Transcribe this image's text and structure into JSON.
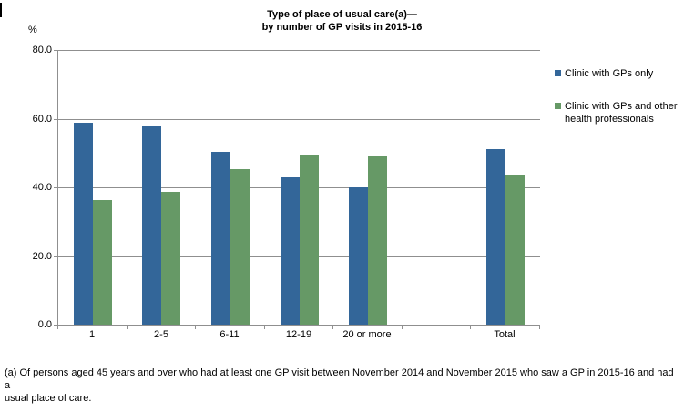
{
  "chart_data": {
    "type": "bar",
    "title_line1": "Type of place of usual care(a)—",
    "title_line2": "by number of GP visits in 2015-16",
    "ylabel": "%",
    "ylim": [
      0,
      80
    ],
    "ytick_values": [
      80,
      60,
      40,
      20,
      0
    ],
    "ytick_labels": [
      "80.0",
      "60.0",
      "40.0",
      "20.0",
      "0.0"
    ],
    "grid": true,
    "legend_position": "right",
    "categories": [
      "1",
      "2-5",
      "6-11",
      "12-19",
      "20 or more",
      "Total"
    ],
    "category_slots": [
      0,
      1,
      2,
      3,
      4,
      6
    ],
    "slot_count": 7,
    "series": [
      {
        "name": "Clinic with GPs only",
        "label_lines": [
          "Clinic with GPs only"
        ],
        "color": "#336699",
        "values": [
          58.7,
          57.7,
          50.3,
          42.9,
          40.0,
          51.2
        ]
      },
      {
        "name": "Clinic with GPs and other health professionals",
        "label_lines": [
          "Clinic with GPs and other",
          "health professionals"
        ],
        "color": "#669966",
        "values": [
          36.3,
          38.8,
          45.2,
          49.2,
          49.0,
          43.5
        ]
      }
    ]
  },
  "footnote": {
    "lines": [
      "(a) Of persons aged 45 years and over who had at least one GP visit between November 2014 and November 2015 who saw a GP in 2015-16 and had a",
      "usual place of care."
    ]
  }
}
